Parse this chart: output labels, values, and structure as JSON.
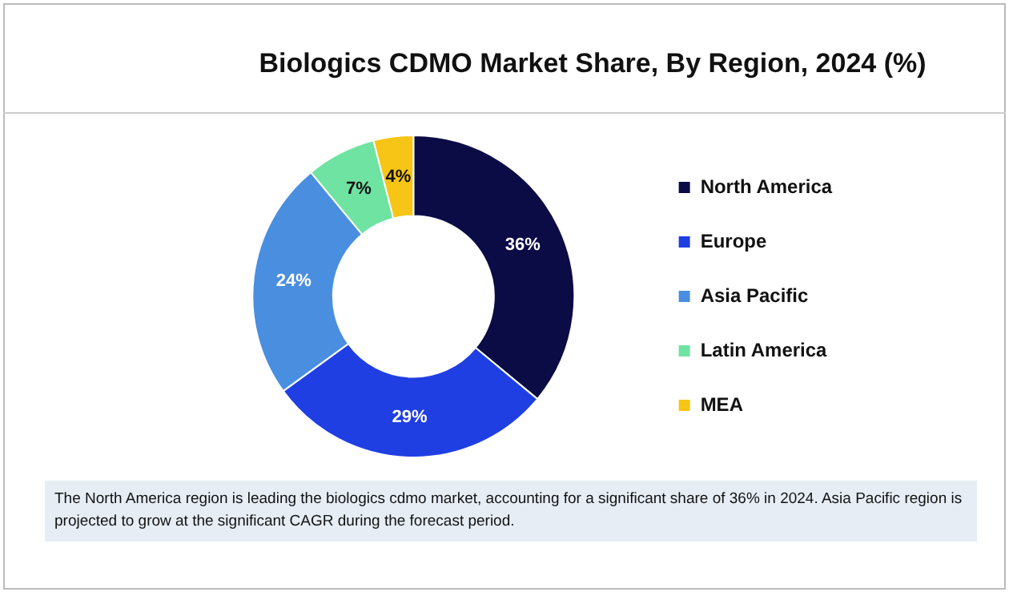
{
  "chart_data": {
    "type": "donut",
    "title": "Biologics CDMO Market Share, By Region, 2024 (%)",
    "categories": [
      "North America",
      "Europe",
      "Asia Pacific",
      "Latin America",
      "MEA"
    ],
    "values": [
      36,
      29,
      24,
      7,
      4
    ],
    "colors": [
      "#0b0b45",
      "#1f3fe3",
      "#4a8ee0",
      "#6fe3a2",
      "#f7c515"
    ],
    "value_labels": [
      "36%",
      "29%",
      "24%",
      "7%",
      "4%"
    ],
    "legend": "right",
    "annotations": [
      "The North America region is leading the biologics cdmo market, accounting for a significant share of 36% in 2024. Asia Pacific region is projected to grow at the significant CAGR during the forecast period."
    ]
  }
}
